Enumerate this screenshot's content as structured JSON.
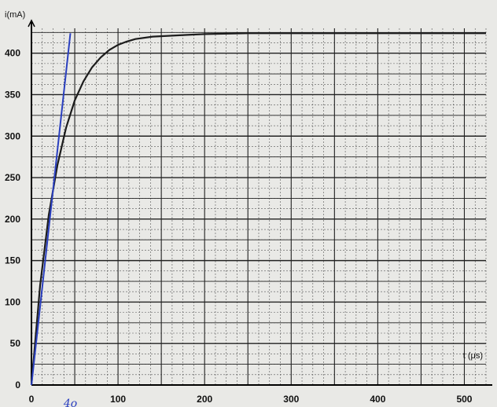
{
  "chart_data": {
    "type": "line",
    "ylabel": "i(mA)",
    "xlabel": "t (μs)",
    "xlim": [
      0,
      525
    ],
    "ylim": [
      0,
      430
    ],
    "x_ticks": [
      0,
      100,
      200,
      300,
      400,
      500
    ],
    "y_ticks": [
      0,
      50,
      100,
      150,
      200,
      250,
      300,
      350,
      400
    ],
    "grid": true,
    "series": [
      {
        "x": [
          0,
          10,
          20,
          30,
          40,
          50,
          60,
          70,
          80,
          90,
          100,
          110,
          120,
          140,
          160,
          180,
          200,
          250,
          300,
          350,
          400,
          450,
          500,
          525
        ],
        "y": [
          0,
          120,
          205,
          265,
          310,
          343,
          366,
          383,
          395,
          404,
          410,
          414,
          417,
          420,
          421,
          422,
          423,
          424,
          424,
          424,
          424,
          424,
          424,
          424
        ],
        "color": "#1c1c1c"
      },
      {
        "x": [
          0,
          45
        ],
        "y": [
          0,
          424
        ],
        "color": "#2a3fbf"
      }
    ],
    "annotations": [
      {
        "text": "4o",
        "x": 45
      }
    ]
  }
}
